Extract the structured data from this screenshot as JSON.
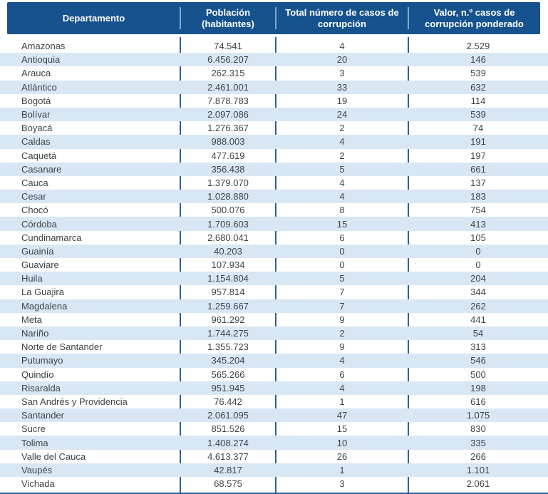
{
  "colors": {
    "header_bg": "#16538e",
    "header_text": "#ffffff",
    "header_separator": "#7fa9d2",
    "body_separator": "#2d6097",
    "row_stripe": "#d9e7f5",
    "body_text": "#3f4448"
  },
  "table": {
    "columns": [
      "Departamento",
      "Población (habitantes)",
      "Total número de casos de corrupción",
      "Valor, n.º casos de corrupción ponderado"
    ],
    "rows": [
      {
        "departamento": "Amazonas",
        "poblacion": "74.541",
        "casos": "4",
        "valor": "2.529"
      },
      {
        "departamento": "Antioquia",
        "poblacion": "6.456.207",
        "casos": "20",
        "valor": "146"
      },
      {
        "departamento": "Arauca",
        "poblacion": "262.315",
        "casos": "3",
        "valor": "539"
      },
      {
        "departamento": "Atlántico",
        "poblacion": "2.461.001",
        "casos": "33",
        "valor": "632"
      },
      {
        "departamento": "Bogotá",
        "poblacion": "7.878.783",
        "casos": "19",
        "valor": "114"
      },
      {
        "departamento": "Bolívar",
        "poblacion": "2.097.086",
        "casos": "24",
        "valor": "539"
      },
      {
        "departamento": "Boyacá",
        "poblacion": "1.276.367",
        "casos": "2",
        "valor": "74"
      },
      {
        "departamento": "Caldas",
        "poblacion": "988.003",
        "casos": "4",
        "valor": "191"
      },
      {
        "departamento": "Caquetá",
        "poblacion": "477.619",
        "casos": "2",
        "valor": "197"
      },
      {
        "departamento": "Casanare",
        "poblacion": "356.438",
        "casos": "5",
        "valor": "661"
      },
      {
        "departamento": "Cauca",
        "poblacion": "1.379.070",
        "casos": "4",
        "valor": "137"
      },
      {
        "departamento": "Cesar",
        "poblacion": "1.028.880",
        "casos": "4",
        "valor": "183"
      },
      {
        "departamento": "Chocó",
        "poblacion": "500.076",
        "casos": "8",
        "valor": "754"
      },
      {
        "departamento": "Córdoba",
        "poblacion": "1.709.603",
        "casos": "15",
        "valor": "413"
      },
      {
        "departamento": "Cundinamarca",
        "poblacion": "2.680.041",
        "casos": "6",
        "valor": "105"
      },
      {
        "departamento": "Guainía",
        "poblacion": "40.203",
        "casos": "0",
        "valor": "0"
      },
      {
        "departamento": "Guaviare",
        "poblacion": "107.934",
        "casos": "0",
        "valor": "0"
      },
      {
        "departamento": "Huila",
        "poblacion": "1.154.804",
        "casos": "5",
        "valor": "204"
      },
      {
        "departamento": "La Guajira",
        "poblacion": "957.814",
        "casos": "7",
        "valor": "344"
      },
      {
        "departamento": "Magdalena",
        "poblacion": "1.259.667",
        "casos": "7",
        "valor": "262"
      },
      {
        "departamento": "Meta",
        "poblacion": "961.292",
        "casos": "9",
        "valor": "441"
      },
      {
        "departamento": "Nariño",
        "poblacion": "1.744.275",
        "casos": "2",
        "valor": "54"
      },
      {
        "departamento": "Norte de Santander",
        "poblacion": "1.355.723",
        "casos": "9",
        "valor": "313"
      },
      {
        "departamento": "Putumayo",
        "poblacion": "345.204",
        "casos": "4",
        "valor": "546"
      },
      {
        "departamento": "Quindío",
        "poblacion": "565.266",
        "casos": "6",
        "valor": "500"
      },
      {
        "departamento": "Risaralda",
        "poblacion": "951.945",
        "casos": "4",
        "valor": "198"
      },
      {
        "departamento": "San Andrés y Providencia",
        "poblacion": "76.442",
        "casos": "1",
        "valor": "616"
      },
      {
        "departamento": "Santander",
        "poblacion": "2.061.095",
        "casos": "47",
        "valor": "1.075"
      },
      {
        "departamento": "Sucre",
        "poblacion": "851.526",
        "casos": "15",
        "valor": "830"
      },
      {
        "departamento": "Tolima",
        "poblacion": "1.408.274",
        "casos": "10",
        "valor": "335"
      },
      {
        "departamento": "Valle del Cauca",
        "poblacion": "4.613.377",
        "casos": "26",
        "valor": "266"
      },
      {
        "departamento": "Vaupés",
        "poblacion": "42.817",
        "casos": "1",
        "valor": "1.101"
      },
      {
        "departamento": "Vichada",
        "poblacion": "68.575",
        "casos": "3",
        "valor": "2.061"
      }
    ]
  }
}
